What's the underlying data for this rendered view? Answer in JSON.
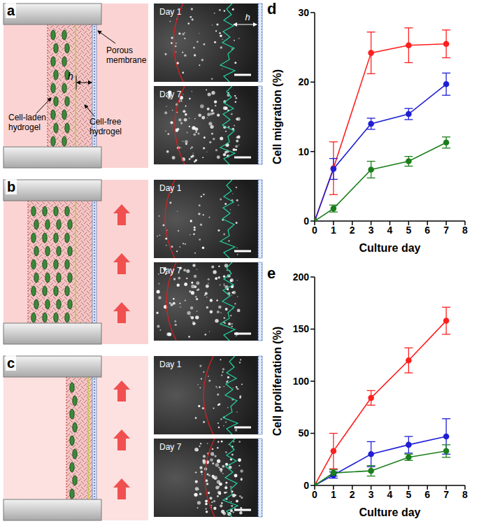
{
  "panels": [
    {
      "label": "a",
      "sketch_labels": [
        "Cell-laden hydrogel",
        "Cell-free hydrogel",
        "Porous membrane"
      ],
      "gap_label": "h",
      "images": [
        "Day 1",
        "Day 7"
      ]
    },
    {
      "label": "b",
      "images": [
        "Day 1",
        "Day 7"
      ]
    },
    {
      "label": "c",
      "images": [
        "Day 1",
        "Day 7"
      ]
    }
  ],
  "chart_data": [
    {
      "panel_label": "d",
      "type": "line",
      "xlabel": "Culture day",
      "ylabel": "Cell migration (%)",
      "x": [
        0,
        1,
        3,
        5,
        7
      ],
      "xlim": [
        0,
        8
      ],
      "xticks": [
        0,
        1,
        2,
        3,
        4,
        5,
        6,
        7,
        8
      ],
      "ylim": [
        0,
        30
      ],
      "yticks": [
        0,
        10,
        20,
        30
      ],
      "grid": false,
      "marker": "circle",
      "series": [
        {
          "color": "#ff1f1f",
          "values": [
            0,
            7.6,
            24.2,
            25.3,
            25.5
          ],
          "errors": [
            0,
            3.8,
            3.0,
            2.5,
            2.0
          ]
        },
        {
          "color": "#1f1fd6",
          "values": [
            0,
            7.5,
            14.0,
            15.4,
            19.7
          ],
          "errors": [
            0,
            1.5,
            0.8,
            0.8,
            1.6
          ]
        },
        {
          "color": "#1a7f1a",
          "values": [
            0,
            1.8,
            7.4,
            8.6,
            11.3
          ],
          "errors": [
            0,
            0.5,
            1.2,
            0.7,
            0.8
          ]
        }
      ]
    },
    {
      "panel_label": "e",
      "type": "line",
      "xlabel": "Culture day",
      "ylabel": "Cell proliferation (%)",
      "x": [
        0,
        1,
        3,
        5,
        7
      ],
      "xlim": [
        0,
        8
      ],
      "xticks": [
        0,
        1,
        2,
        3,
        4,
        5,
        6,
        7,
        8
      ],
      "ylim": [
        0,
        200
      ],
      "yticks": [
        0,
        50,
        100,
        150,
        200
      ],
      "grid": false,
      "marker": "circle",
      "series": [
        {
          "color": "#ff1f1f",
          "values": [
            0,
            33,
            84,
            120,
            158
          ],
          "errors": [
            0,
            17,
            7,
            12,
            13
          ]
        },
        {
          "color": "#1f1fd6",
          "values": [
            0,
            10,
            30,
            39,
            47
          ],
          "errors": [
            0,
            3,
            12,
            8,
            17
          ]
        },
        {
          "color": "#1a7f1a",
          "values": [
            0,
            12,
            14,
            27,
            33
          ],
          "errors": [
            0,
            3,
            5,
            3,
            6
          ]
        }
      ]
    }
  ]
}
